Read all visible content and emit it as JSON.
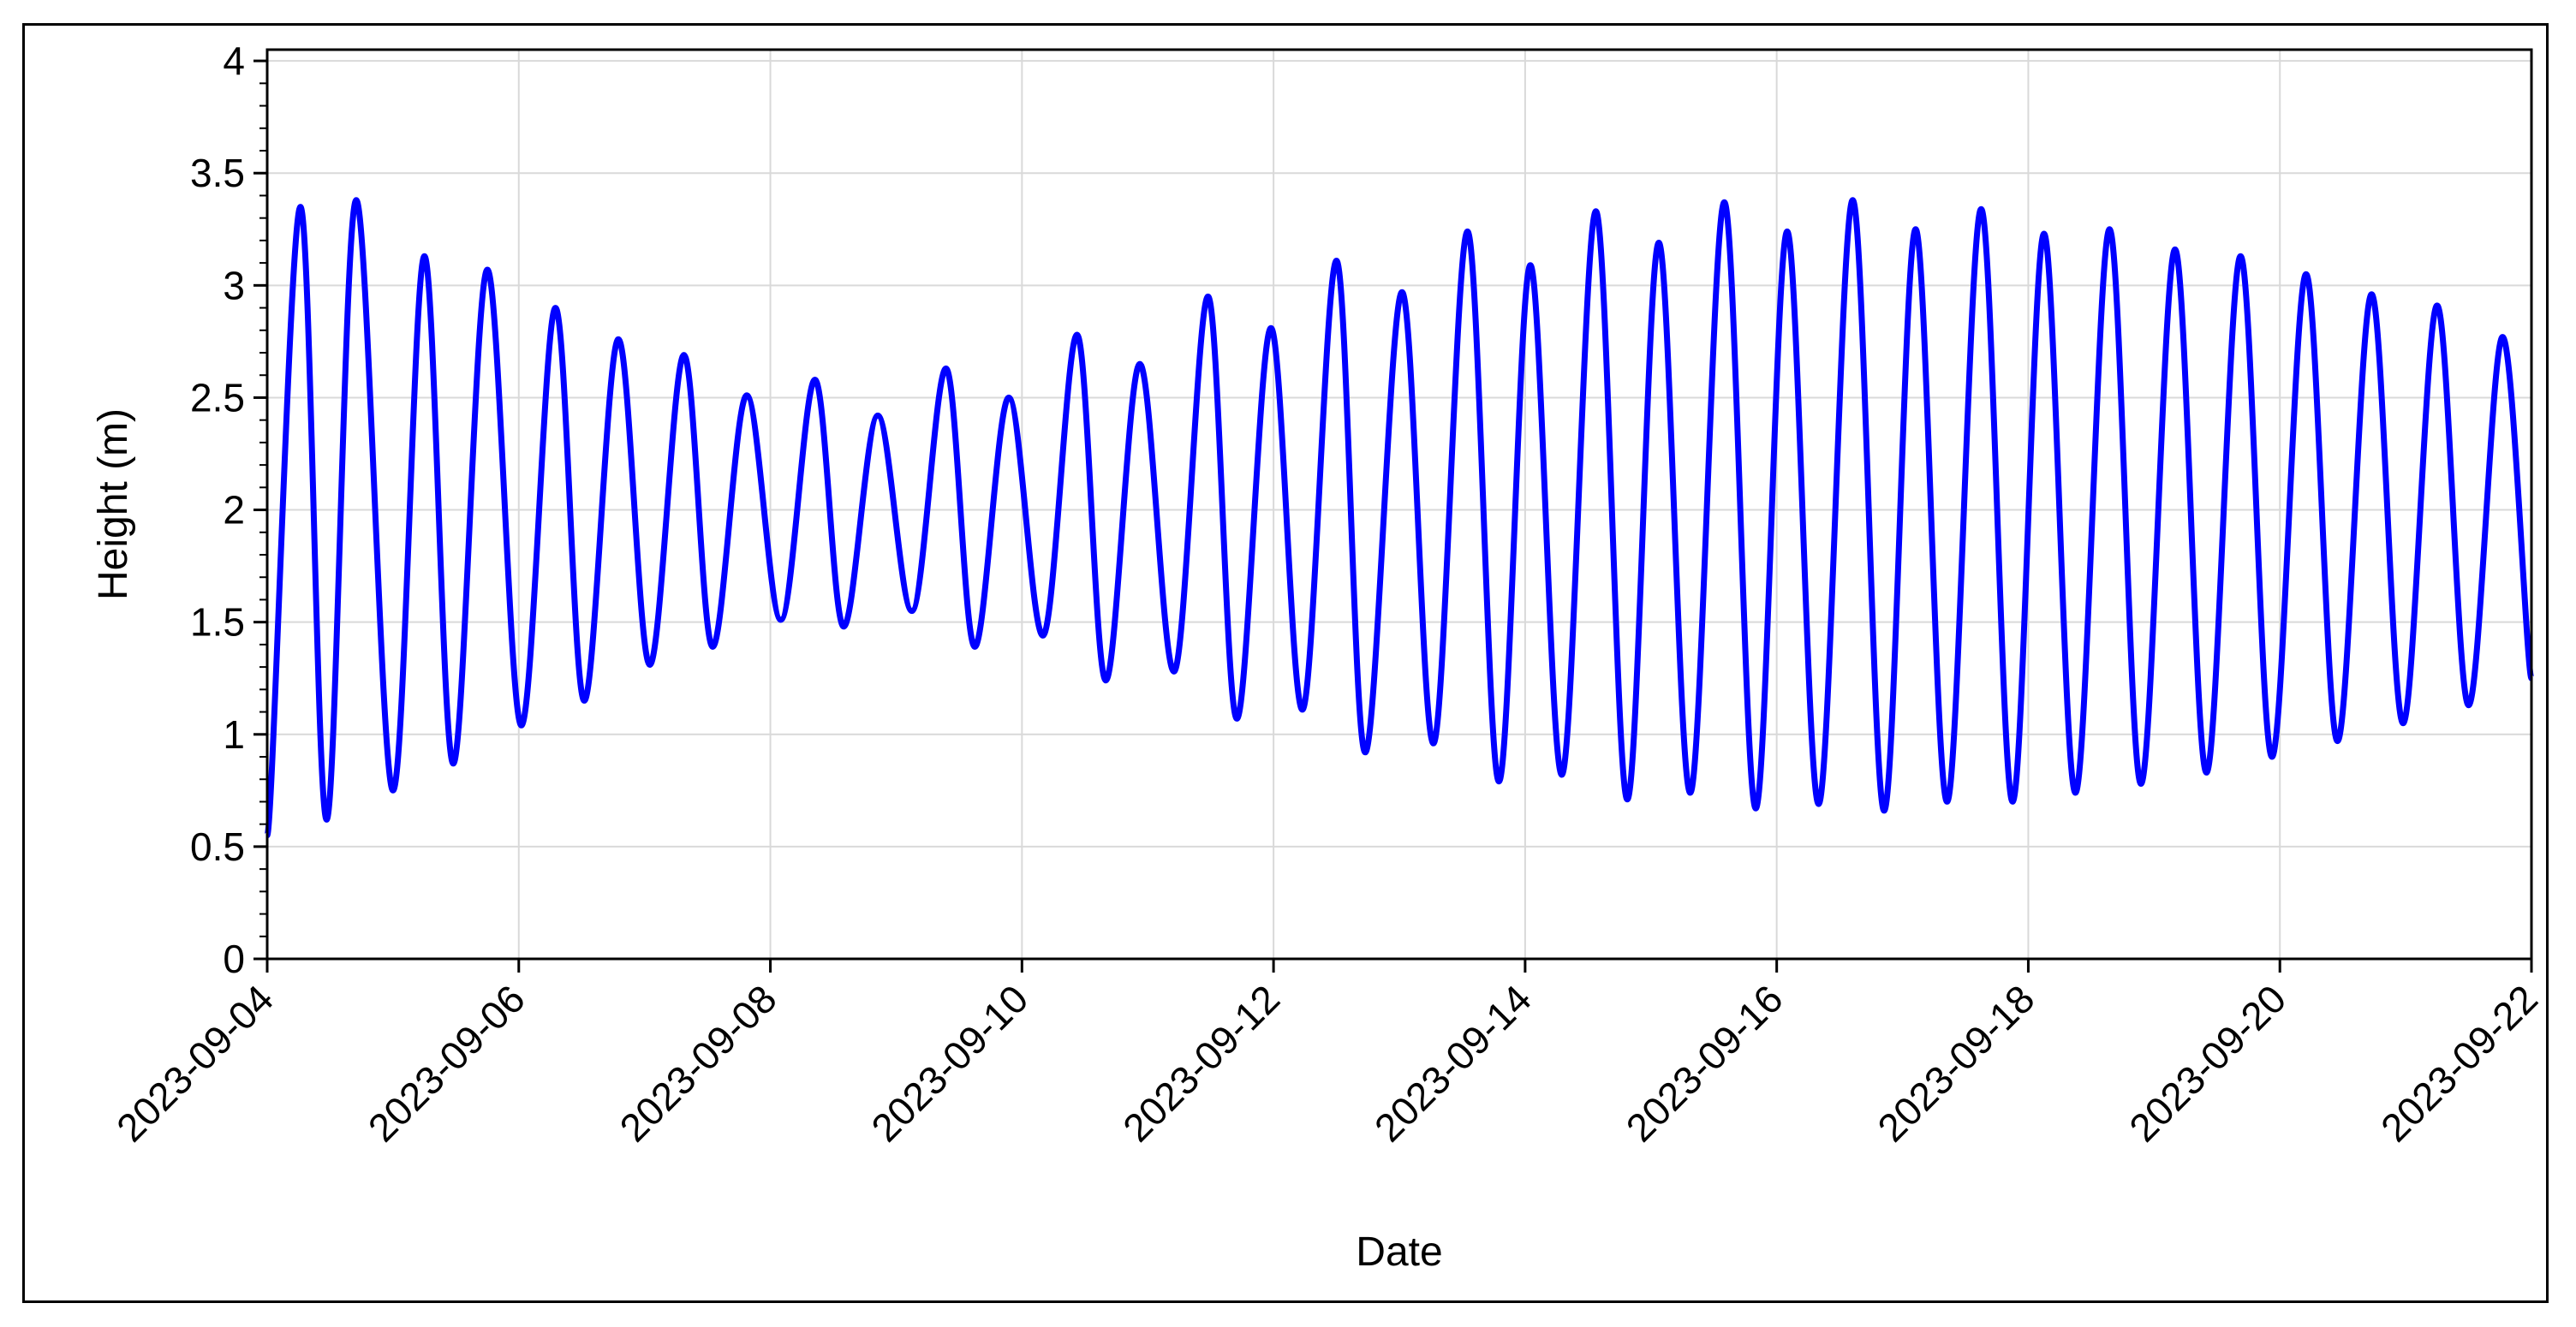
{
  "chart_data": {
    "type": "line",
    "xlabel": "Date",
    "ylabel": "Height (m)",
    "xlim": [
      "2023-09-04",
      "2023-09-22"
    ],
    "ylim": [
      0,
      4.05
    ],
    "x_ticks": [
      "2023-09-04",
      "2023-09-06",
      "2023-09-08",
      "2023-09-10",
      "2023-09-12",
      "2023-09-14",
      "2023-09-16",
      "2023-09-18",
      "2023-09-20",
      "2023-09-22"
    ],
    "y_ticks": [
      0,
      0.5,
      1,
      1.5,
      2,
      2.5,
      3,
      3.5,
      4
    ],
    "y_tick_labels": [
      "0",
      "0.5",
      "1",
      "1.5",
      "2",
      "2.5",
      "3",
      "3.5",
      "4"
    ],
    "grid": true,
    "line_color": "#0000ff",
    "series": [
      {
        "x": [
          "2023-09-04 00:00",
          "2023-09-04 06:20",
          "2023-09-04 11:20",
          "2023-09-04 17:00",
          "2023-09-05 00:00",
          "2023-09-05 06:00",
          "2023-09-05 11:30",
          "2023-09-05 18:00",
          "2023-09-06 00:30",
          "2023-09-06 07:00",
          "2023-09-06 12:30",
          "2023-09-06 19:00",
          "2023-09-07 01:00",
          "2023-09-07 07:30",
          "2023-09-07 13:00",
          "2023-09-07 19:30",
          "2023-09-08 02:00",
          "2023-09-08 08:30",
          "2023-09-08 14:00",
          "2023-09-08 20:30",
          "2023-09-09 03:00",
          "2023-09-09 09:30",
          "2023-09-09 15:00",
          "2023-09-09 21:30",
          "2023-09-10 04:00",
          "2023-09-10 10:30",
          "2023-09-10 16:00",
          "2023-09-10 22:30",
          "2023-09-11 05:00",
          "2023-09-11 11:30",
          "2023-09-11 17:00",
          "2023-09-11 23:30",
          "2023-09-12 05:30",
          "2023-09-12 12:00",
          "2023-09-12 17:30",
          "2023-09-13 00:30",
          "2023-09-13 06:30",
          "2023-09-13 13:00",
          "2023-09-13 19:00",
          "2023-09-14 01:00",
          "2023-09-14 07:00",
          "2023-09-14 13:30",
          "2023-09-14 19:30",
          "2023-09-15 01:30",
          "2023-09-15 07:30",
          "2023-09-15 14:00",
          "2023-09-15 20:00",
          "2023-09-16 02:00",
          "2023-09-16 08:00",
          "2023-09-16 14:30",
          "2023-09-16 20:30",
          "2023-09-17 02:30",
          "2023-09-17 08:30",
          "2023-09-17 15:00",
          "2023-09-17 21:00",
          "2023-09-18 03:00",
          "2023-09-18 09:00",
          "2023-09-18 15:30",
          "2023-09-18 21:30",
          "2023-09-19 04:00",
          "2023-09-19 10:00",
          "2023-09-19 16:30",
          "2023-09-19 22:30",
          "2023-09-20 05:00",
          "2023-09-20 11:00",
          "2023-09-20 17:30",
          "2023-09-20 23:30",
          "2023-09-21 06:00",
          "2023-09-21 12:00",
          "2023-09-21 18:30",
          "2023-09-22 00:00"
        ],
        "y": [
          0.55,
          3.35,
          0.62,
          3.38,
          0.75,
          3.13,
          0.87,
          3.07,
          1.04,
          2.9,
          1.15,
          2.76,
          1.31,
          2.69,
          1.39,
          2.51,
          1.51,
          2.58,
          1.48,
          2.42,
          1.55,
          2.63,
          1.39,
          2.5,
          1.44,
          2.78,
          1.24,
          2.65,
          1.28,
          2.95,
          1.07,
          2.81,
          1.11,
          3.11,
          0.92,
          2.97,
          0.96,
          3.24,
          0.79,
          3.09,
          0.82,
          3.33,
          0.71,
          3.19,
          0.74,
          3.37,
          0.67,
          3.24,
          0.69,
          3.38,
          0.66,
          3.25,
          0.7,
          3.34,
          0.7,
          3.23,
          0.74,
          3.25,
          0.78,
          3.16,
          0.83,
          3.13,
          0.9,
          3.05,
          0.97,
          2.96,
          1.05,
          2.91,
          1.13,
          2.77,
          1.25
        ]
      }
    ]
  }
}
